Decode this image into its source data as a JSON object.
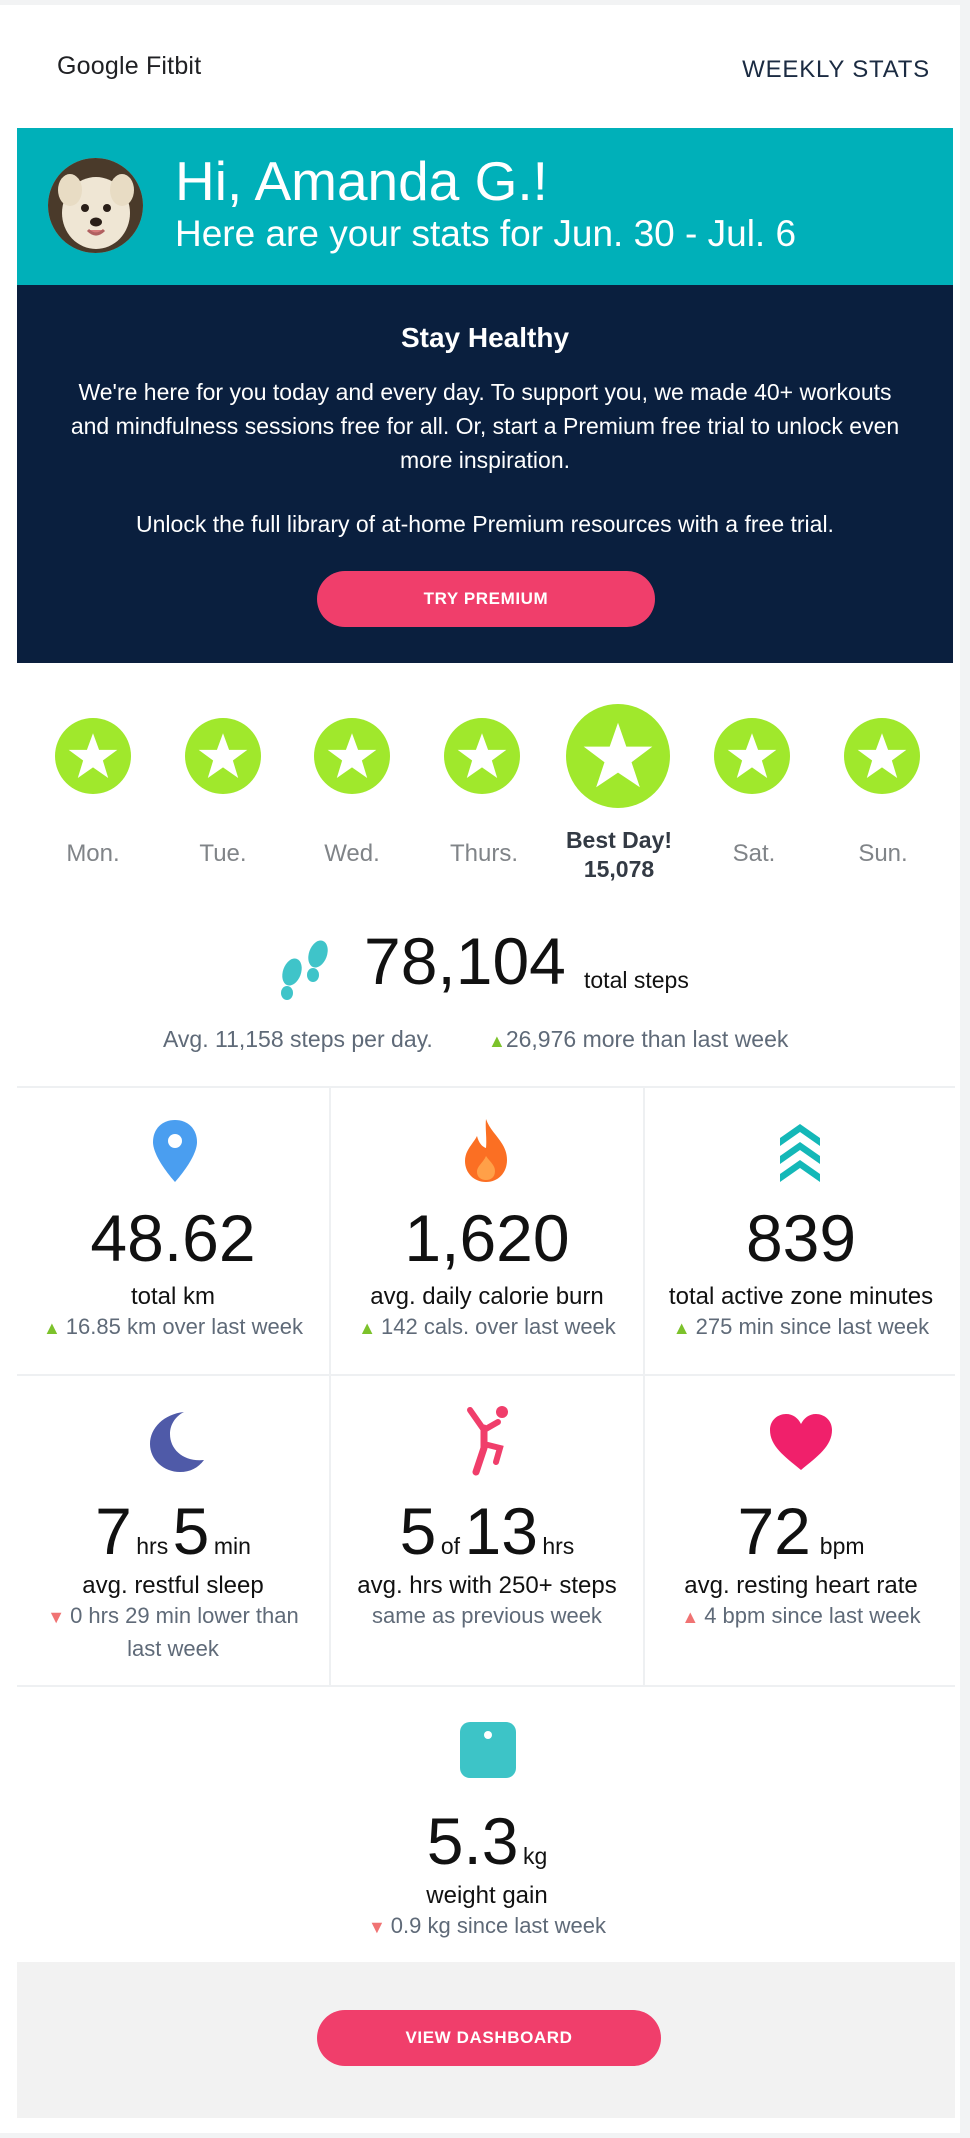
{
  "header": {
    "logo": "Google Fitbit",
    "link": "WEEKLY STATS"
  },
  "greeting": {
    "title": "Hi, Amanda G.!",
    "subtitle": "Here are your stats for Jun. 30 - Jul. 6"
  },
  "promo": {
    "title": "Stay Healthy",
    "text1": "We're here for you today and every day. To support you, we made 40+ workouts and mindfulness sessions free for all. Or, start a Premium free trial to unlock even more inspiration.",
    "text2": "Unlock the full library of at-home Premium resources with a free trial.",
    "button": "TRY PREMIUM"
  },
  "days": [
    {
      "label": "Mon."
    },
    {
      "label": "Tue."
    },
    {
      "label": "Wed."
    },
    {
      "label": "Thurs."
    },
    {
      "label": "Best Day!",
      "value": "15,078"
    },
    {
      "label": "Sat."
    },
    {
      "label": "Sun."
    }
  ],
  "steps": {
    "total": "78,104",
    "unit": "total steps",
    "avg": "Avg. 11,158 steps per day.",
    "change": "26,976 more than last week"
  },
  "stats": {
    "km": {
      "value": "48.62",
      "title": "total km",
      "change": "16.85 km over last week"
    },
    "calories": {
      "value": "1,620",
      "title": "avg. daily calorie burn",
      "change": "142 cals. over last week"
    },
    "azm": {
      "value": "839",
      "title": "total active zone minutes",
      "change": "275 min since last week"
    },
    "sleep": {
      "hrs": "7",
      "hrs_unit": "hrs",
      "min": "5",
      "min_unit": "min",
      "title": "avg. restful sleep",
      "change": "0 hrs 29 min lower than last week"
    },
    "hourly": {
      "num": "5",
      "of": "of",
      "den": "13",
      "unit": "hrs",
      "title": "avg. hrs with 250+ steps",
      "change": "same as previous week"
    },
    "heart": {
      "value": "72",
      "unit": "bpm",
      "title": "avg. resting heart rate",
      "change": "4 bpm since last week"
    },
    "weight": {
      "value": "5.3",
      "unit": "kg",
      "title": "weight gain",
      "change": "0.9 kg since last week"
    }
  },
  "footer": {
    "button": "VIEW DASHBOARD"
  },
  "colors": {
    "teal": "#00b0b9",
    "navy": "#0a1f3e",
    "pink": "#f03e6b",
    "lime": "#a0e82c",
    "up": "#7cc22b",
    "down": "#f07373"
  }
}
